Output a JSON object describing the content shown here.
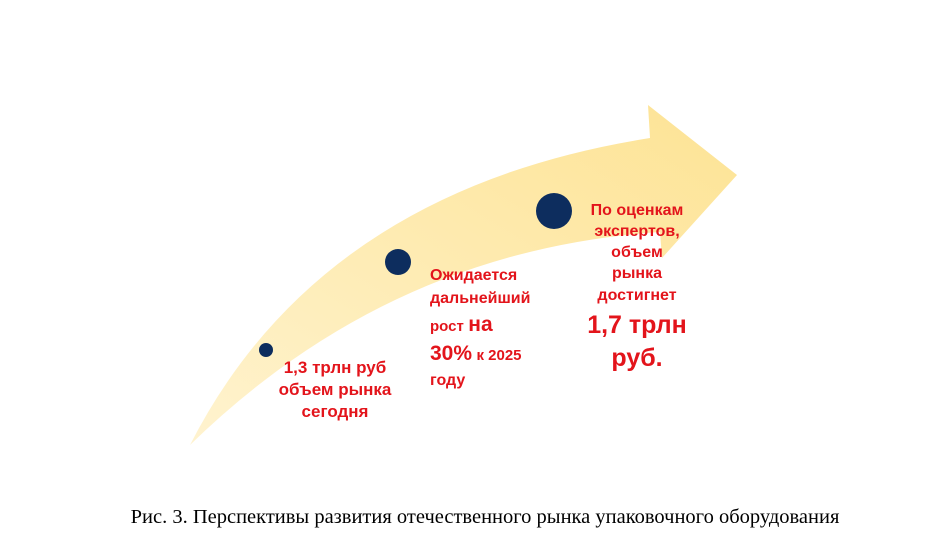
{
  "nodes": [
    {
      "lines": [
        "1,3 трлн руб",
        "объем рынка",
        "сегодня"
      ]
    },
    {
      "parts": [
        "Ожидается",
        "дальнейший",
        "рост",
        "на",
        "30%",
        "к 2025",
        "году"
      ]
    },
    {
      "lines": [
        "По оценкам",
        "экспертов,",
        "объем",
        "рынка",
        "достигнет"
      ],
      "highlight": [
        "1,7 трлн",
        "руб."
      ]
    }
  ],
  "caption": "Рис. 3. Перспективы развития отечественного рынка упаковочного оборудования"
}
